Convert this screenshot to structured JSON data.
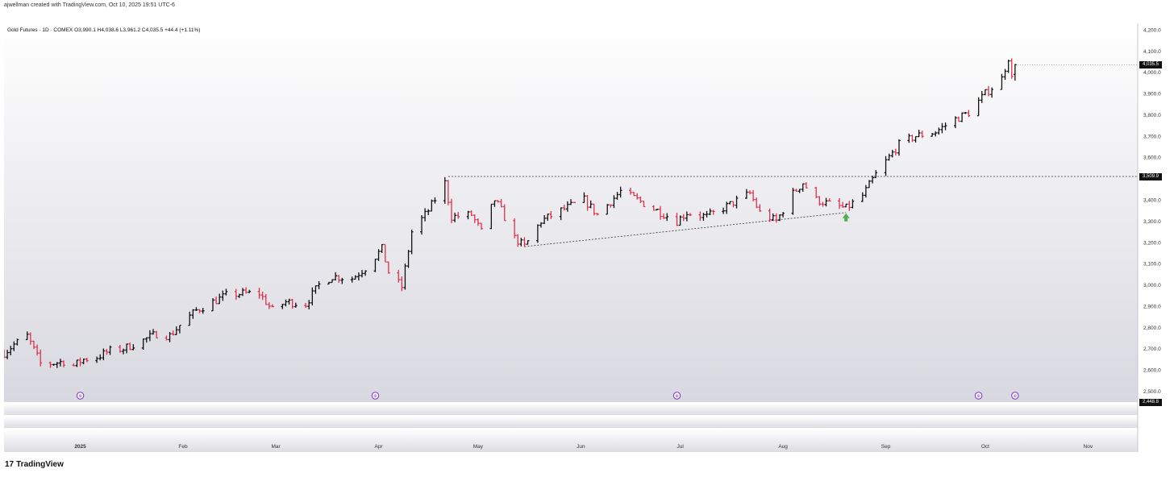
{
  "caption": "ajwellman created with TradingView.com, Oct 10, 2025 19:51 UTC-6",
  "title_line": "Gold Futures · 1D · COMEX  O3,990.1  H4,038.6  L3,961.2  C4,035.5  +44.4 (+1.11%)",
  "brand": "TradingView",
  "brand_mark": "17",
  "event_marker_glyph": "⊛",
  "price_tags": {
    "last": "4,035.5",
    "level": "3,509.9",
    "bottom": "2,448.8"
  },
  "colors": {
    "up": "#111111",
    "down": "#e0314b",
    "arrow": "#4caf50",
    "event": "#7b2fbf"
  },
  "chart_data": {
    "type": "ohlc",
    "title": "Gold Futures · 1D · COMEX",
    "y_ticks": [
      "2,500.0",
      "2,600.0",
      "2,700.0",
      "2,800.0",
      "2,900.0",
      "3,000.0",
      "3,100.0",
      "3,200.0",
      "3,300.0",
      "3,400.0",
      "3,500.0",
      "3,600.0",
      "3,700.0",
      "3,800.0",
      "3,900.0",
      "4,000.0",
      "4,100.0",
      "4,200.0"
    ],
    "ylim": [
      2448.8,
      4230
    ],
    "x_ticks": [
      {
        "label": "2025",
        "date": "2025-01-01",
        "bold": true
      },
      {
        "label": "Feb",
        "date": "2025-02-01"
      },
      {
        "label": "Mar",
        "date": "2025-03-01"
      },
      {
        "label": "Apr",
        "date": "2025-04-01"
      },
      {
        "label": "May",
        "date": "2025-05-01"
      },
      {
        "label": "Jun",
        "date": "2025-06-01"
      },
      {
        "label": "Jul",
        "date": "2025-07-01"
      },
      {
        "label": "Aug",
        "date": "2025-08-01"
      },
      {
        "label": "Sep",
        "date": "2025-09-01"
      },
      {
        "label": "Oct",
        "date": "2025-10-01"
      },
      {
        "label": "Nov",
        "date": "2025-11-01"
      }
    ],
    "xlim": [
      "2024-12-09",
      "2025-11-16"
    ],
    "anchors": [
      [
        "2024-12-09",
        2680
      ],
      [
        "2024-12-12",
        2720
      ],
      [
        "2024-12-16",
        2760
      ],
      [
        "2024-12-20",
        2630
      ],
      [
        "2024-12-23",
        2630
      ],
      [
        "2024-12-27",
        2640
      ],
      [
        "2024-12-30",
        2620
      ],
      [
        "2025-01-02",
        2650
      ],
      [
        "2025-01-06",
        2660
      ],
      [
        "2025-01-10",
        2690
      ],
      [
        "2025-01-14",
        2700
      ],
      [
        "2025-01-20",
        2740
      ],
      [
        "2025-01-24",
        2770
      ],
      [
        "2025-01-28",
        2760
      ],
      [
        "2025-01-31",
        2810
      ],
      [
        "2025-02-05",
        2880
      ],
      [
        "2025-02-10",
        2920
      ],
      [
        "2025-02-14",
        2950
      ],
      [
        "2025-02-19",
        2960
      ],
      [
        "2025-02-24",
        2960
      ],
      [
        "2025-02-28",
        2880
      ],
      [
        "2025-03-04",
        2920
      ],
      [
        "2025-03-10",
        2910
      ],
      [
        "2025-03-14",
        3000
      ],
      [
        "2025-03-18",
        3040
      ],
      [
        "2025-03-24",
        3030
      ],
      [
        "2025-03-28",
        3080
      ],
      [
        "2025-04-02",
        3170
      ],
      [
        "2025-04-04",
        3060
      ],
      [
        "2025-04-08",
        2990
      ],
      [
        "2025-04-11",
        3250
      ],
      [
        "2025-04-16",
        3350
      ],
      [
        "2025-04-21",
        3480
      ],
      [
        "2025-04-23",
        3320
      ],
      [
        "2025-04-29",
        3330
      ],
      [
        "2025-05-02",
        3250
      ],
      [
        "2025-05-06",
        3400
      ],
      [
        "2025-05-08",
        3350
      ],
      [
        "2025-05-12",
        3220
      ],
      [
        "2025-05-15",
        3180
      ],
      [
        "2025-05-20",
        3300
      ],
      [
        "2025-05-26",
        3350
      ],
      [
        "2025-06-02",
        3400
      ],
      [
        "2025-06-06",
        3330
      ],
      [
        "2025-06-13",
        3440
      ],
      [
        "2025-06-18",
        3400
      ],
      [
        "2025-06-24",
        3350
      ],
      [
        "2025-06-30",
        3300
      ],
      [
        "2025-07-03",
        3340
      ],
      [
        "2025-07-09",
        3320
      ],
      [
        "2025-07-15",
        3370
      ],
      [
        "2025-07-22",
        3430
      ],
      [
        "2025-07-25",
        3340
      ],
      [
        "2025-07-30",
        3300
      ],
      [
        "2025-08-04",
        3430
      ],
      [
        "2025-08-07",
        3480
      ],
      [
        "2025-08-11",
        3400
      ],
      [
        "2025-08-15",
        3380
      ],
      [
        "2025-08-20",
        3360
      ],
      [
        "2025-08-25",
        3420
      ],
      [
        "2025-08-29",
        3520
      ],
      [
        "2025-09-02",
        3600
      ],
      [
        "2025-09-05",
        3660
      ],
      [
        "2025-09-10",
        3700
      ],
      [
        "2025-09-16",
        3720
      ],
      [
        "2025-09-22",
        3780
      ],
      [
        "2025-09-26",
        3810
      ],
      [
        "2025-10-01",
        3900
      ],
      [
        "2025-10-06",
        3970
      ],
      [
        "2025-10-08",
        4070
      ],
      [
        "2025-10-09",
        3970
      ],
      [
        "2025-10-10",
        4035.5
      ]
    ],
    "last_bar": {
      "date": "2025-10-10",
      "open": 3990.1,
      "high": 4038.6,
      "low": 3961.2,
      "close": 4035.5
    },
    "resistance_line": {
      "from": [
        "2025-04-22",
        3509.9
      ],
      "to": [
        "2025-11-16",
        3509.9
      ]
    },
    "trend_line": {
      "from": [
        "2025-05-15",
        3180
      ],
      "to": [
        "2025-08-20",
        3340
      ]
    },
    "buy_arrow": {
      "date": "2025-08-20",
      "price": 3310
    },
    "event_dates": [
      "2025-01-01",
      "2025-03-31",
      "2025-06-30",
      "2025-09-29",
      "2025-10-10"
    ]
  }
}
